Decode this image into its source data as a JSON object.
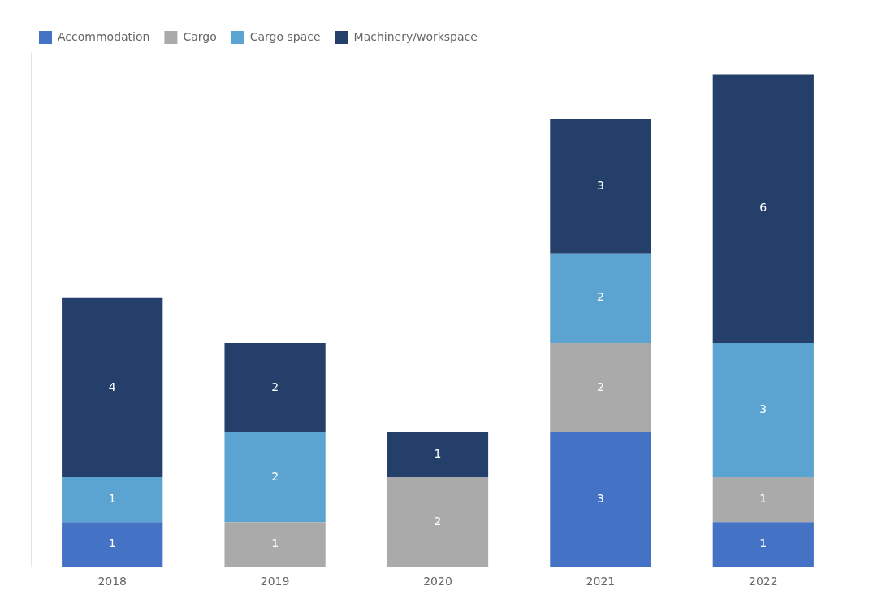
{
  "chart_data": {
    "type": "bar",
    "stacked": true,
    "categories": [
      "2018",
      "2019",
      "2020",
      "2021",
      "2022"
    ],
    "series": [
      {
        "name": "Accommodation",
        "color": "#4472C4",
        "values": [
          1,
          0,
          0,
          3,
          1
        ]
      },
      {
        "name": "Cargo",
        "color": "#AAAAAA",
        "values": [
          0,
          1,
          2,
          2,
          1
        ]
      },
      {
        "name": "Cargo space",
        "color": "#5BA3D0",
        "values": [
          1,
          2,
          0,
          2,
          3
        ]
      },
      {
        "name": "Machinery/workspace",
        "color": "#243F6A",
        "values": [
          4,
          2,
          1,
          3,
          6
        ]
      }
    ],
    "ylim": [
      0,
      11.5
    ],
    "yticks": [],
    "grid": false,
    "legend": "upper left",
    "data_labels": true,
    "tick_labels": "x"
  }
}
